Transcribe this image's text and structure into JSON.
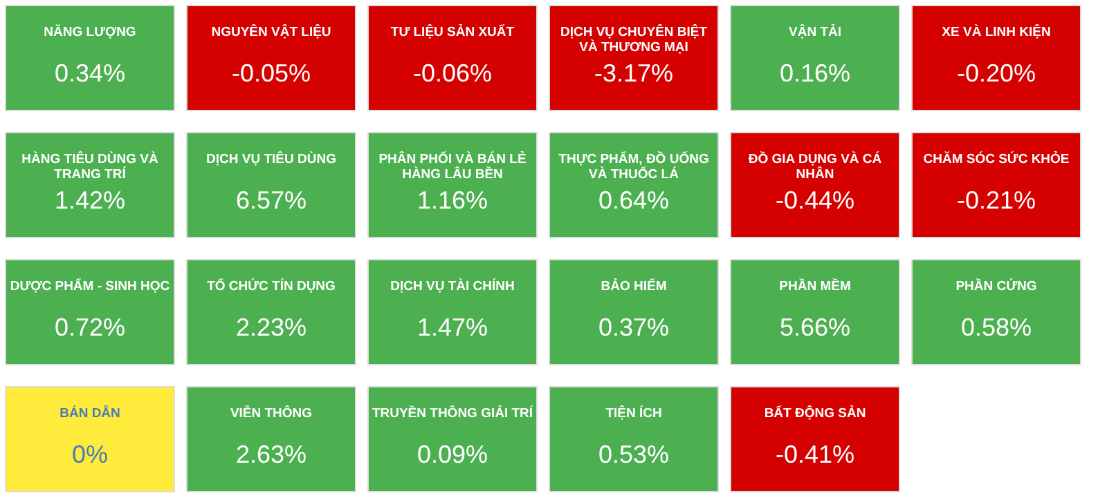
{
  "chart_data": {
    "type": "other",
    "categories": [
      "NĂNG LƯỢNG",
      "NGUYÊN VẬT LIỆU",
      "TƯ LIỆU SẢN XUẤT",
      "DỊCH VỤ CHUYÊN BIỆT VÀ THƯƠNG MẠI",
      "VẬN TẢI",
      "XE VÀ LINH KIỆN",
      "HÀNG TIÊU DÙNG VÀ TRANG TRÍ",
      "DỊCH VỤ TIÊU DÙNG",
      "PHÂN PHỐI VÀ BÁN LẺ HÀNG LÂU BỀN",
      "THỰC PHẨM, ĐỒ UỐNG VÀ THUỐC LÁ",
      "ĐỒ GIA DỤNG VÀ CÁ NHÂN",
      "CHĂM SÓC SỨC KHỎE",
      "DƯỢC PHẨM - SINH HỌC",
      "TỔ CHỨC TÍN DỤNG",
      "DỊCH VỤ TÀI CHÍNH",
      "BẢO HIỂM",
      "PHẦN MỀM",
      "PHẦN CỨNG",
      "BÁN DẪN",
      "VIỄN THÔNG",
      "TRUYỀN THÔNG GIẢI TRÍ",
      "TIỆN ÍCH",
      "BẤT ĐỘNG SẢN"
    ],
    "values": [
      0.34,
      -0.05,
      -0.06,
      -3.17,
      0.16,
      -0.2,
      1.42,
      6.57,
      1.16,
      0.64,
      -0.44,
      -0.21,
      0.72,
      2.23,
      1.47,
      0.37,
      5.66,
      0.58,
      0,
      2.63,
      0.09,
      0.53,
      -0.41
    ],
    "value_labels": [
      "0.34%",
      "-0.05%",
      "-0.06%",
      "-3.17%",
      "0.16%",
      "-0.20%",
      "1.42%",
      "6.57%",
      "1.16%",
      "0.64%",
      "-0.44%",
      "-0.21%",
      "0.72%",
      "2.23%",
      "1.47%",
      "0.37%",
      "5.66%",
      "0.58%",
      "0%",
      "2.63%",
      "0.09%",
      "0.53%",
      "-0.41%"
    ],
    "colors": [
      "#4caf50",
      "#d50000",
      "#d50000",
      "#d50000",
      "#4caf50",
      "#d50000",
      "#4caf50",
      "#4caf50",
      "#4caf50",
      "#4caf50",
      "#d50000",
      "#d50000",
      "#4caf50",
      "#4caf50",
      "#4caf50",
      "#4caf50",
      "#4caf50",
      "#4caf50",
      "#ffeb3b",
      "#4caf50",
      "#4caf50",
      "#4caf50",
      "#d50000"
    ],
    "data_labels": true
  }
}
